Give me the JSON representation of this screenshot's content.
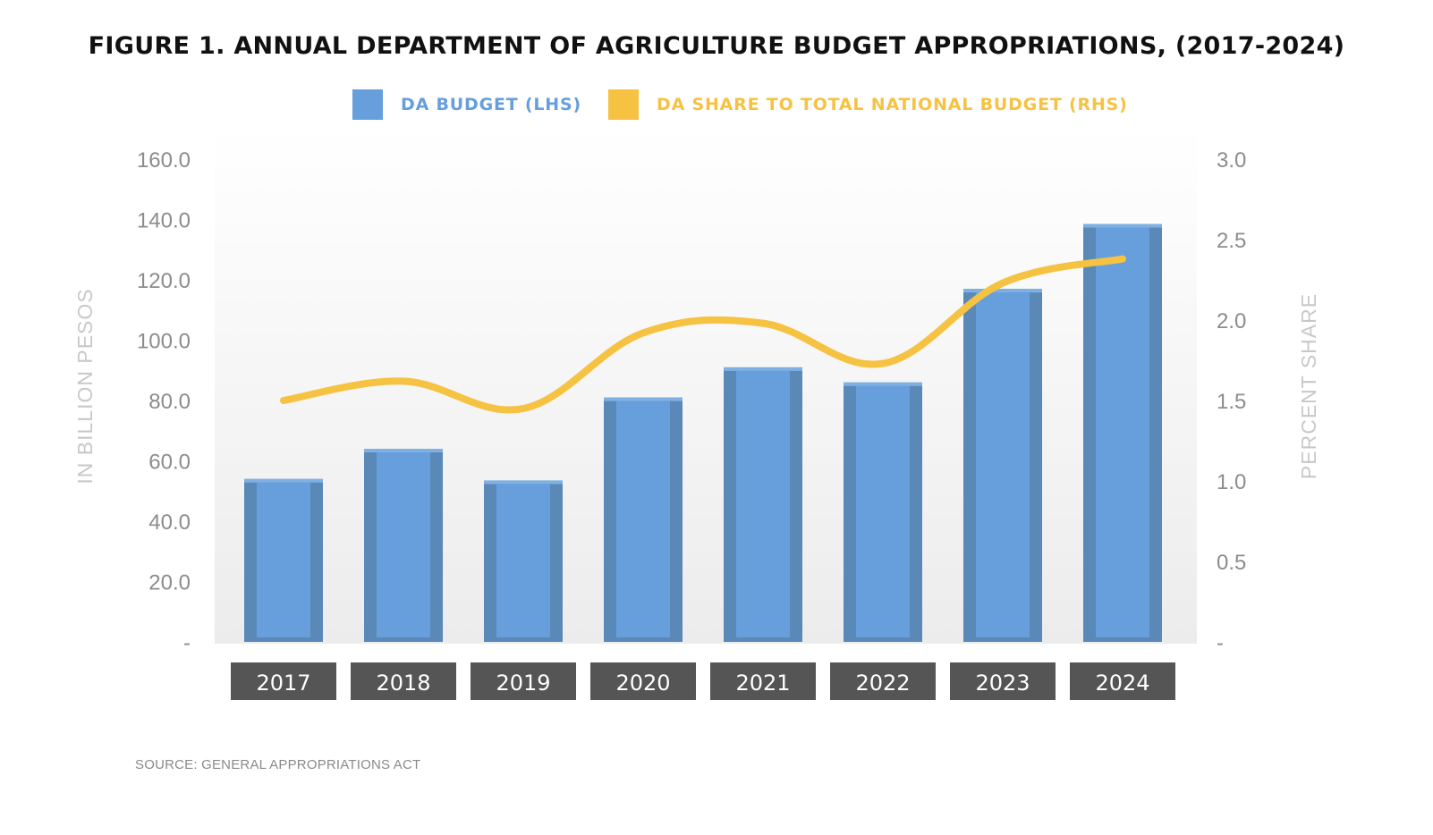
{
  "title": "FIGURE 1. ANNUAL DEPARTMENT OF AGRICULTURE BUDGET APPROPRIATIONS, (2017-2024)",
  "source": "SOURCE: GENERAL APPROPRIATIONS ACT",
  "legend": [
    {
      "label": "DA BUDGET (LHS)",
      "color": "#669fdb"
    },
    {
      "label": "DA SHARE TO TOTAL NATIONAL BUDGET (RHS)",
      "color": "#f5c242"
    }
  ],
  "colors": {
    "bar": "#669fdb",
    "bar_edge": "#5a89b8",
    "line": "#f5c242",
    "axis_text": "#8c8c8c",
    "axis_title": "#c8c8c8",
    "category_box": "#555555",
    "category_text": "#ffffff"
  },
  "chart_data": {
    "type": "bar",
    "categories": [
      "2017",
      "2018",
      "2019",
      "2020",
      "2021",
      "2022",
      "2023",
      "2024"
    ],
    "series": [
      {
        "name": "DA BUDGET (LHS)",
        "type": "bar",
        "axis": "left",
        "values": [
          54.0,
          64.0,
          53.5,
          81.0,
          91.0,
          86.0,
          117.0,
          138.5
        ]
      },
      {
        "name": "DA SHARE TO TOTAL NATIONAL BUDGET (RHS)",
        "type": "line",
        "axis": "right",
        "values": [
          1.5,
          1.62,
          1.45,
          1.92,
          1.98,
          1.73,
          2.23,
          2.38
        ]
      }
    ],
    "ylabel": "IN BILLION PESOS",
    "y2label": "PERCENT SHARE",
    "ylim": [
      0,
      160
    ],
    "y2lim": [
      0,
      3
    ],
    "yticks": [
      "-",
      "20.0",
      "40.0",
      "60.0",
      "80.0",
      "100.0",
      "120.0",
      "140.0",
      "160.0"
    ],
    "y2ticks": [
      "-",
      "0.5",
      "1.0",
      "1.5",
      "2.0",
      "2.5",
      "3.0"
    ],
    "legend_position": "top",
    "grid": false
  }
}
